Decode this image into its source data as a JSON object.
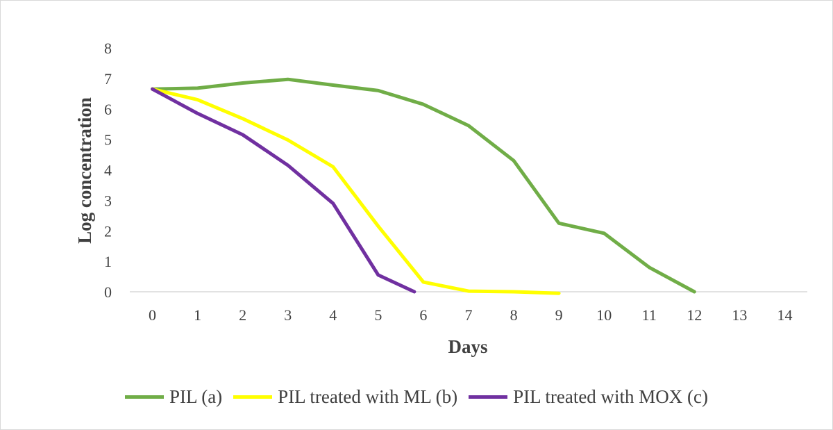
{
  "chart_data": {
    "type": "line",
    "title": "",
    "xlabel": "Days",
    "ylabel": "Log concentration",
    "x": [
      0,
      1,
      2,
      3,
      4,
      5,
      6,
      7,
      8,
      9,
      10,
      11,
      12,
      13,
      14
    ],
    "x_ticks": [
      "0",
      "1",
      "2",
      "3",
      "4",
      "5",
      "6",
      "7",
      "8",
      "9",
      "10",
      "11",
      "12",
      "13",
      "14"
    ],
    "y_ticks": [
      "0",
      "1",
      "2",
      "3",
      "4",
      "5",
      "6",
      "7",
      "8"
    ],
    "xlim": [
      0,
      14
    ],
    "ylim": [
      0,
      8
    ],
    "grid": false,
    "legend_position": "bottom",
    "series": [
      {
        "name": "PIL (a)",
        "color": "#70ad47",
        "x": [
          0,
          1,
          2,
          3,
          4,
          5,
          6,
          7,
          8,
          9,
          10,
          11,
          12
        ],
        "values": [
          6.65,
          6.68,
          6.85,
          6.97,
          6.78,
          6.6,
          6.15,
          5.45,
          4.3,
          2.25,
          1.92,
          0.8,
          0
        ]
      },
      {
        "name": "PIL treated with ML (b)",
        "color": "#ffff00",
        "x": [
          0,
          1,
          2,
          3,
          4,
          5,
          6,
          7,
          8,
          9
        ],
        "values": [
          6.65,
          6.3,
          5.68,
          4.98,
          4.1,
          2.15,
          0.32,
          0.02,
          0,
          -0.05
        ]
      },
      {
        "name": "PIL treated with MOX (c)",
        "color": "#7030a0",
        "x": [
          0,
          1,
          2,
          3,
          4,
          5,
          5.8
        ],
        "values": [
          6.65,
          5.85,
          5.15,
          4.15,
          2.9,
          0.55,
          0
        ]
      }
    ]
  }
}
